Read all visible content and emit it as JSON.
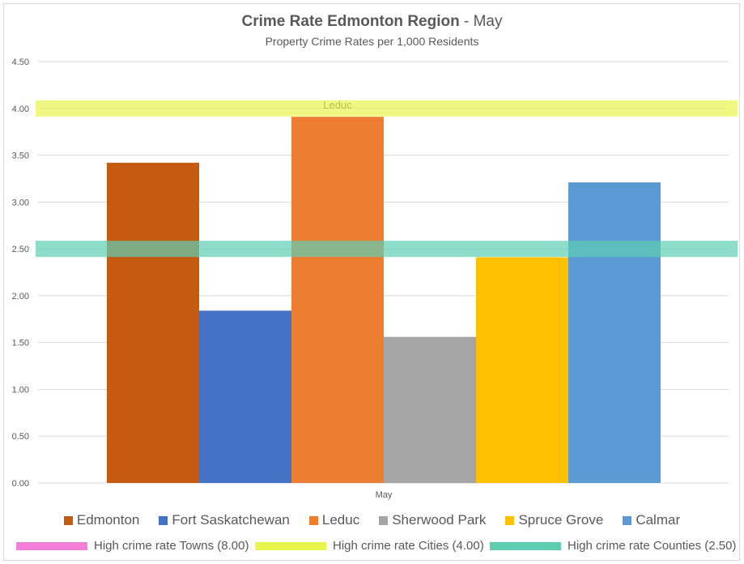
{
  "title_main": "Crime Rate Edmonton Region",
  "title_suffix": " - May",
  "subtitle": "Property Crime Rates per 1,000 Residents",
  "chart_data": {
    "type": "bar",
    "categories": [
      "May"
    ],
    "series": [
      {
        "name": "Edmonton",
        "values": [
          3.42
        ],
        "color": "#C55A11"
      },
      {
        "name": "Fort Saskatchewan",
        "values": [
          1.84
        ],
        "color": "#4472C4"
      },
      {
        "name": "Leduc",
        "values": [
          3.91
        ],
        "color": "#ED7D31"
      },
      {
        "name": "Sherwood Park",
        "values": [
          1.56
        ],
        "color": "#A5A5A5"
      },
      {
        "name": "Spruce Grove",
        "values": [
          2.41
        ],
        "color": "#FFC000"
      },
      {
        "name": "Calmar",
        "values": [
          3.21
        ],
        "color": "#5B9BD5"
      }
    ],
    "ylim": [
      0,
      4.5
    ],
    "yticks": [
      "0.00",
      "0.50",
      "1.00",
      "1.50",
      "2.00",
      "2.50",
      "3.00",
      "3.50",
      "4.00",
      "4.50"
    ],
    "grid": true,
    "annotations": [
      {
        "text": "Leduc",
        "series": "Leduc"
      }
    ],
    "thresholds": [
      {
        "name": "High crime rate Towns (8.00)",
        "value": 8.0,
        "color": "#F47FD9"
      },
      {
        "name": "High crime rate Cities (4.00)",
        "value": 4.0,
        "color": "#E9F54B"
      },
      {
        "name": "High crime rate Counties (2.50)",
        "value": 2.5,
        "color": "#5ECDB4"
      }
    ],
    "legend_position": "bottom"
  }
}
